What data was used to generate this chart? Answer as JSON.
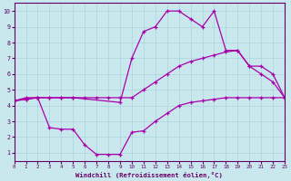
{
  "xlabel": "Windchill (Refroidissement éolien,°C)",
  "bg_color": "#c8e8ee",
  "line_color": "#aa00aa",
  "grid_color": "#aad4dc",
  "xlim": [
    0,
    23
  ],
  "ylim": [
    0.5,
    10.5
  ],
  "xticks": [
    0,
    1,
    2,
    3,
    4,
    5,
    6,
    7,
    8,
    9,
    10,
    11,
    12,
    13,
    14,
    15,
    16,
    17,
    18,
    19,
    20,
    21,
    22,
    23
  ],
  "yticks": [
    1,
    2,
    3,
    4,
    5,
    6,
    7,
    8,
    9,
    10
  ],
  "line_top_x": [
    0,
    1,
    2,
    3,
    4,
    5,
    9,
    10,
    11,
    12,
    13,
    14,
    15,
    16,
    17,
    18,
    19,
    20,
    21,
    22,
    23
  ],
  "line_top_y": [
    4.3,
    4.5,
    4.5,
    4.5,
    4.5,
    4.5,
    4.2,
    7.0,
    8.7,
    9.0,
    10.0,
    10.0,
    9.5,
    9.0,
    10.0,
    7.5,
    7.5,
    6.5,
    6.0,
    5.5,
    4.5
  ],
  "line_mid_x": [
    0,
    1,
    2,
    3,
    4,
    5,
    6,
    7,
    8,
    9,
    10,
    11,
    12,
    13,
    14,
    15,
    16,
    17,
    18,
    19,
    20,
    21,
    22,
    23
  ],
  "line_mid_y": [
    4.3,
    4.4,
    4.5,
    4.5,
    4.5,
    4.5,
    4.5,
    4.5,
    4.5,
    4.5,
    4.5,
    5.0,
    5.5,
    6.0,
    6.5,
    6.8,
    7.0,
    7.2,
    7.4,
    7.5,
    6.5,
    6.5,
    6.0,
    4.5
  ],
  "line_bot_x": [
    0,
    1,
    2,
    3,
    4,
    5,
    6,
    7,
    8,
    9,
    10,
    11,
    12,
    13,
    14,
    15,
    16,
    17,
    18,
    19,
    20,
    21,
    22,
    23
  ],
  "line_bot_y": [
    4.3,
    4.4,
    4.5,
    2.6,
    2.5,
    2.5,
    1.5,
    0.9,
    0.9,
    0.9,
    2.3,
    2.4,
    3.0,
    3.5,
    4.0,
    4.2,
    4.3,
    4.4,
    4.5,
    4.5,
    4.5,
    4.5,
    4.5,
    4.5
  ]
}
